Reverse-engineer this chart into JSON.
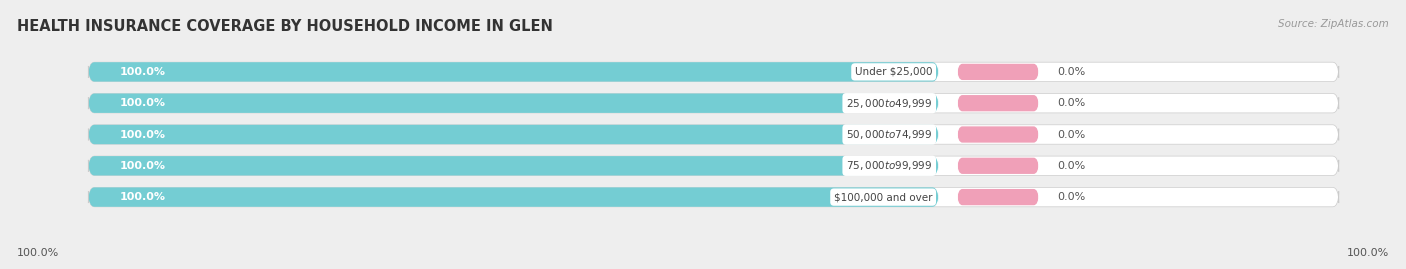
{
  "title": "HEALTH INSURANCE COVERAGE BY HOUSEHOLD INCOME IN GLEN",
  "source": "Source: ZipAtlas.com",
  "categories": [
    "Under $25,000",
    "$25,000 to $49,999",
    "$50,000 to $74,999",
    "$75,000 to $99,999",
    "$100,000 and over"
  ],
  "with_coverage": [
    100.0,
    100.0,
    100.0,
    100.0,
    100.0
  ],
  "without_coverage": [
    0.0,
    0.0,
    0.0,
    0.0,
    0.0
  ],
  "color_with": "#74cdd3",
  "color_without": "#f0a0b8",
  "background_color": "#eeeeee",
  "bar_background": "#e8e8ec",
  "title_fontsize": 10.5,
  "label_fontsize": 8.0,
  "tick_fontsize": 8.0,
  "bar_height": 0.62,
  "total_width": 100,
  "teal_pct": 68,
  "pink_pct": 8,
  "white_pct": 24
}
